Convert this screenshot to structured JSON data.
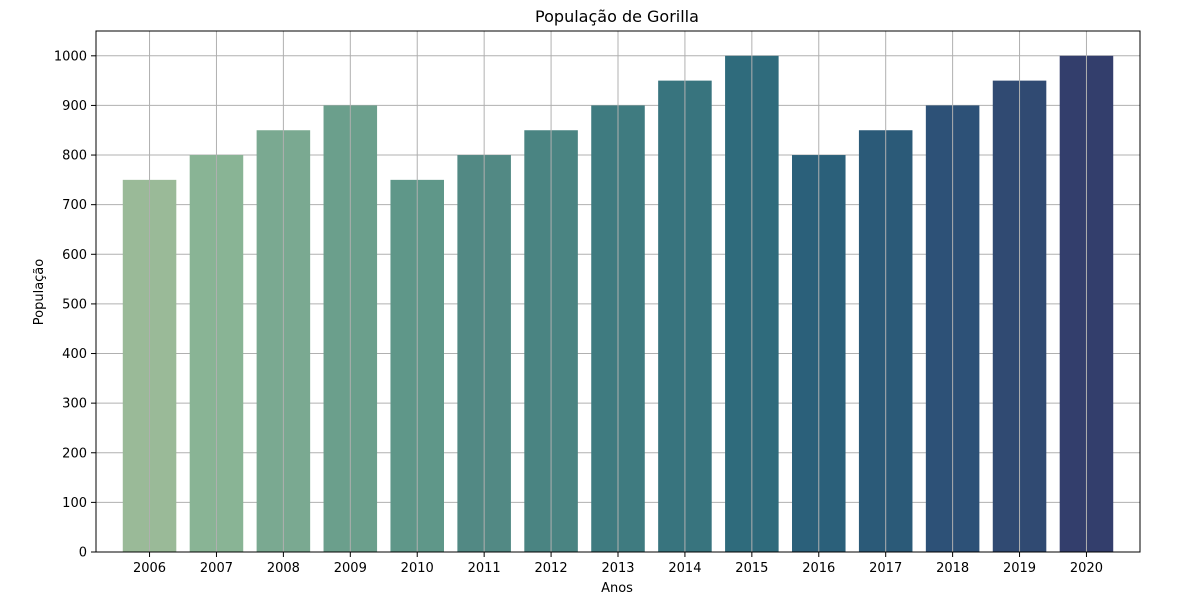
{
  "chart_data": {
    "type": "bar",
    "title": "População de Gorilla",
    "xlabel": "Anos",
    "ylabel": "População",
    "categories": [
      "2006",
      "2007",
      "2008",
      "2009",
      "2010",
      "2011",
      "2012",
      "2013",
      "2014",
      "2015",
      "2016",
      "2017",
      "2018",
      "2019",
      "2020"
    ],
    "values": [
      750,
      800,
      850,
      900,
      750,
      800,
      850,
      900,
      950,
      1000,
      800,
      850,
      900,
      950,
      1000
    ],
    "colors": [
      "#9aba98",
      "#89b495",
      "#7aa991",
      "#6b9f8c",
      "#5f9789",
      "#528984",
      "#4a8482",
      "#3f7b80",
      "#38747e",
      "#2f6b7c",
      "#2b607a",
      "#2b5a78",
      "#2d5177",
      "#304a72",
      "#333e6c"
    ],
    "ylim": [
      0,
      1050
    ],
    "yticks": [
      0,
      100,
      200,
      300,
      400,
      500,
      600,
      700,
      800,
      900,
      1000
    ],
    "grid": true,
    "legend": "none"
  }
}
